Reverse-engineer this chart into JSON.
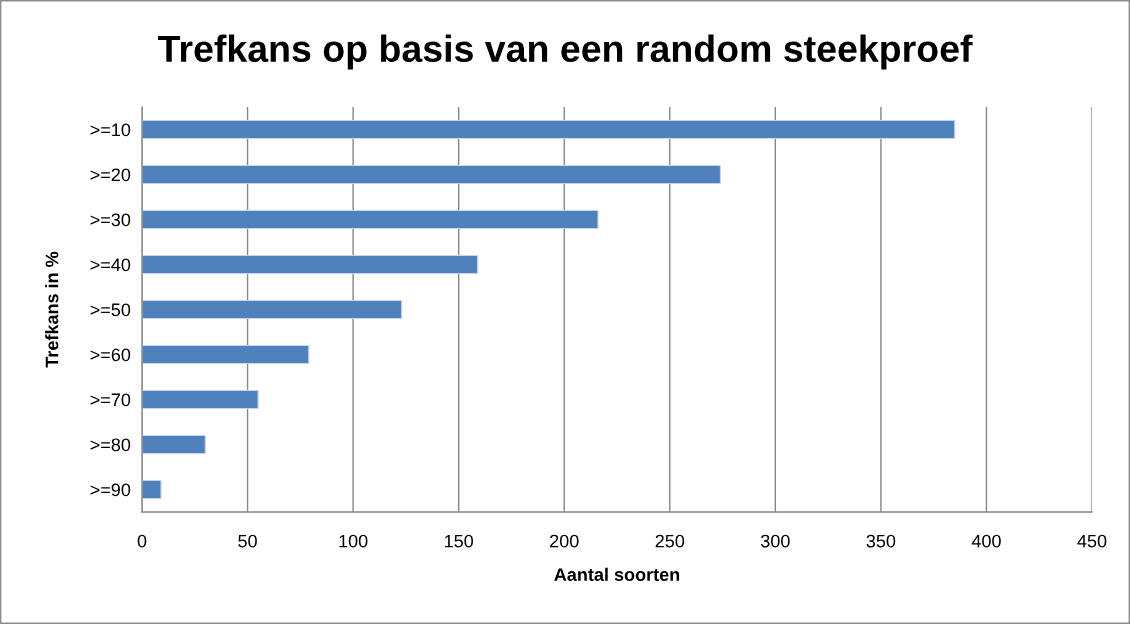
{
  "chart_data": {
    "type": "bar",
    "orientation": "horizontal",
    "title": "Trefkans op basis van een random steekproef",
    "xlabel": "Aantal soorten",
    "ylabel": "Trefkans in %",
    "categories": [
      ">=10",
      ">=20",
      ">=30",
      ">=40",
      ">=50",
      ">=60",
      ">=70",
      ">=80",
      ">=90"
    ],
    "values": [
      385,
      274,
      216,
      159,
      123,
      79,
      55,
      30,
      9
    ],
    "color": "#4f81bd",
    "xlim": [
      0,
      450
    ],
    "xticks": [
      0,
      50,
      100,
      150,
      200,
      250,
      300,
      350,
      400,
      450
    ],
    "grid": "x"
  }
}
